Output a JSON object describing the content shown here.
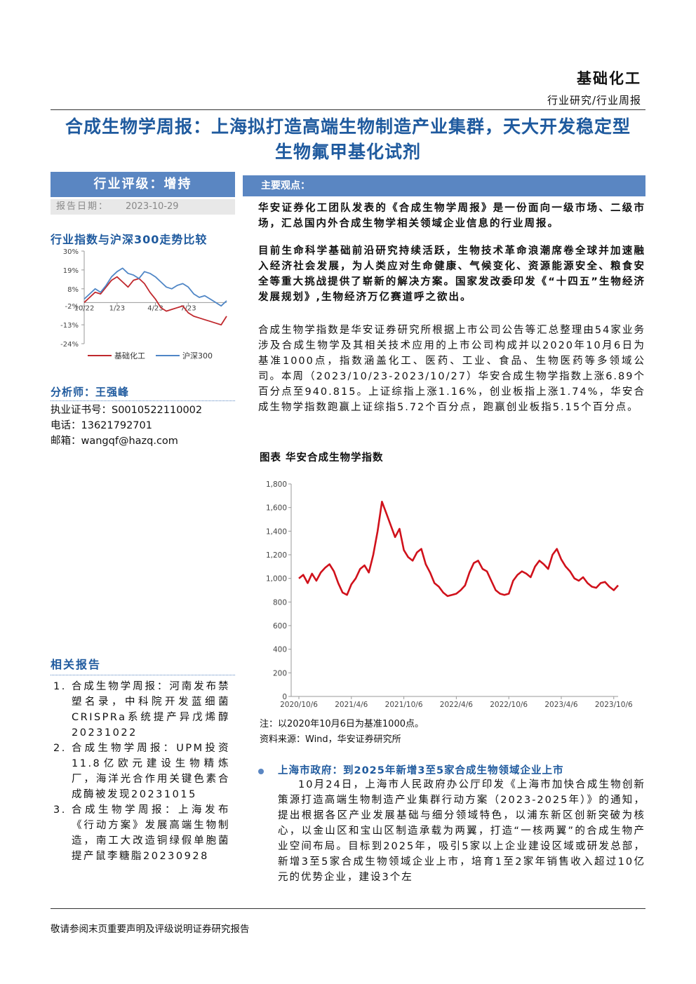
{
  "header": {
    "sector": "基础化工",
    "category": "行业研究/行业周报"
  },
  "title": "合成生物学周报：上海拟打造高端生物制造产业集群，天大开发稳定型生物氟甲基化试剂",
  "rating": "行业评级：增持",
  "report_date": {
    "label": "报告日期：",
    "value": "2023-10-29"
  },
  "analyst": {
    "name": "分析师：王强峰",
    "license": "执业证书号：S0010522110002",
    "phone": "电话：13621792701",
    "email": "邮箱：wangqf@hazq.com"
  },
  "related": {
    "heading": "相关报告",
    "items": [
      "合成生物学周报：河南发布禁塑名录，中科院开发蓝细菌CRISPRa系统提产异戊烯醇20231022",
      "合成生物学周报：UPM投资11.8亿欧元建设生物精炼厂，海洋光合作用关键色素合成酶被发现20231015",
      "合成生物学周报：上海发布《行动方案》发展高端生物制造，南工大改造铜绿假单胞菌提产鼠李糖脂20230928"
    ]
  },
  "main": {
    "heading": "主要观点：",
    "summary": [
      "华安证券化工团队发表的《合成生物学周报》是一份面向一级市场、二级市场，汇总国内外合成生物学相关领域企业信息的行业周报。",
      "目前生命科学基础前沿研究持续活跃，生物技术革命浪潮席卷全球并加速融入经济社会发展，为人类应对生命健康、气候变化、资源能源安全、粮食安全等重大挑战提供了崭新的解决方案。国家发改委印发《“十四五”生物经济发展规划》,生物经济万亿赛道呼之欲出。"
    ],
    "paragraph": "合成生物学指数是华安证券研究所根据上市公司公告等汇总整理由54家业务涉及合成生物学及其相关技术应用的上市公司构成并以2020年10月6日为基准1000点，指数涵盖化工、医药、工业、食品、生物医药等多领域公司。本周（2023/10/23-2023/10/27）华安合成生物学指数上涨6.89个百分点至940.815。上证综指上涨1.16%，创业板指上涨1.74%，华安合成生物学指数跑赢上证综指5.72个百分点，跑赢创业板指5.15个百分点。"
  },
  "news": {
    "heading": "上海市政府：到2025年新增3至5家合成生物领域企业上市",
    "body": "10月24日，上海市人民政府办公厅印发《上海市加快合成生物创新策源打造高端生物制造产业集群行动方案（2023-2025年）》的通知，提出根据各区产业发展基础与细分领域特色，以浦东新区创新突破为核心，以金山区和宝山区制造承载为两翼，打造“一核两翼”的合成生物产业空间布局。目标到2025年，吸引5家以上企业建设区域或研发总部，新增3至5家合成生物领域企业上市，培育1至2家年销售收入超过10亿元的优势企业，建设3个左"
  },
  "footer": "敬请参阅末页重要声明及评级说明证券研究报告",
  "chart_data": [
    {
      "type": "line",
      "title": "行业指数与沪深300走势比较",
      "categories": [
        "10/22",
        null,
        null,
        null,
        null,
        null,
        "1/23",
        null,
        null,
        null,
        null,
        null,
        null,
        "4/23",
        null,
        null,
        null,
        null,
        null,
        "7/23",
        null,
        null,
        null,
        null,
        null,
        null,
        null
      ],
      "series": [
        {
          "name": "基础化工",
          "color": "#c0282d",
          "values": [
            0,
            3,
            6,
            5,
            9,
            13,
            15,
            12,
            9,
            13,
            14,
            11,
            6,
            2,
            -3,
            -5,
            -4,
            -3,
            -2,
            -6,
            -8,
            -9,
            -10,
            -11,
            -12,
            -13,
            -8
          ]
        },
        {
          "name": "沪深300",
          "color": "#4f86c6",
          "values": [
            2,
            5,
            8,
            6,
            10,
            15,
            18,
            20,
            17,
            16,
            14,
            18,
            17,
            15,
            12,
            9,
            8,
            10,
            11,
            9,
            5,
            3,
            4,
            2,
            0,
            -2,
            1
          ]
        }
      ],
      "ylim": [
        -24,
        30
      ],
      "yticks": [
        {
          "value": 30,
          "label": "30%"
        },
        {
          "value": 19,
          "label": "19%"
        },
        {
          "value": 8,
          "label": "8%"
        },
        {
          "value": -2,
          "label": "-2%"
        },
        {
          "value": -13,
          "label": "-13%"
        },
        {
          "value": -24,
          "label": "-24%"
        }
      ],
      "legend": "bottom"
    },
    {
      "type": "line",
      "title": "图表 华安合成生物学指数",
      "note": "注：以2020年10月6日为基准1000点。",
      "source": "资料来源：Wind，华安证券研究所",
      "categories": [
        "2020/10/6",
        null,
        null,
        null,
        null,
        null,
        null,
        null,
        null,
        null,
        null,
        null,
        "2021/4/6",
        null,
        null,
        null,
        null,
        null,
        null,
        null,
        null,
        null,
        null,
        null,
        "2021/10/6",
        null,
        null,
        null,
        null,
        null,
        null,
        null,
        null,
        null,
        null,
        null,
        "2022/4/6",
        null,
        null,
        null,
        null,
        null,
        null,
        null,
        null,
        null,
        null,
        null,
        "2022/10/6",
        null,
        null,
        null,
        null,
        null,
        null,
        null,
        null,
        null,
        null,
        null,
        "2023/4/6",
        null,
        null,
        null,
        null,
        null,
        null,
        null,
        null,
        null,
        null,
        null,
        "2023/10/6",
        null
      ],
      "series": [
        {
          "name": "华安合成生物学指数",
          "color": "#d0111b",
          "values": [
            1000,
            1030,
            960,
            1040,
            980,
            1050,
            1090,
            1120,
            1060,
            960,
            880,
            860,
            950,
            1000,
            1080,
            1110,
            1050,
            1200,
            1400,
            1650,
            1550,
            1450,
            1350,
            1420,
            1240,
            1180,
            1150,
            1220,
            1250,
            1120,
            1050,
            960,
            930,
            880,
            850,
            860,
            870,
            900,
            940,
            1050,
            1130,
            1150,
            1080,
            1060,
            980,
            900,
            870,
            860,
            870,
            980,
            1030,
            1060,
            1040,
            1010,
            1100,
            1150,
            1120,
            1080,
            1200,
            1250,
            1160,
            1100,
            1060,
            1000,
            980,
            1010,
            960,
            930,
            920,
            960,
            970,
            930,
            900,
            941
          ]
        }
      ],
      "ylim": [
        0,
        1800
      ],
      "yticks": [
        0,
        200,
        400,
        600,
        800,
        {
          "value": 1000,
          "label": "1,000"
        },
        {
          "value": 1200,
          "label": "1,200"
        },
        {
          "value": 1400,
          "label": "1,400"
        },
        {
          "value": 1600,
          "label": "1,600"
        },
        {
          "value": 1800,
          "label": "1,800"
        }
      ]
    }
  ]
}
